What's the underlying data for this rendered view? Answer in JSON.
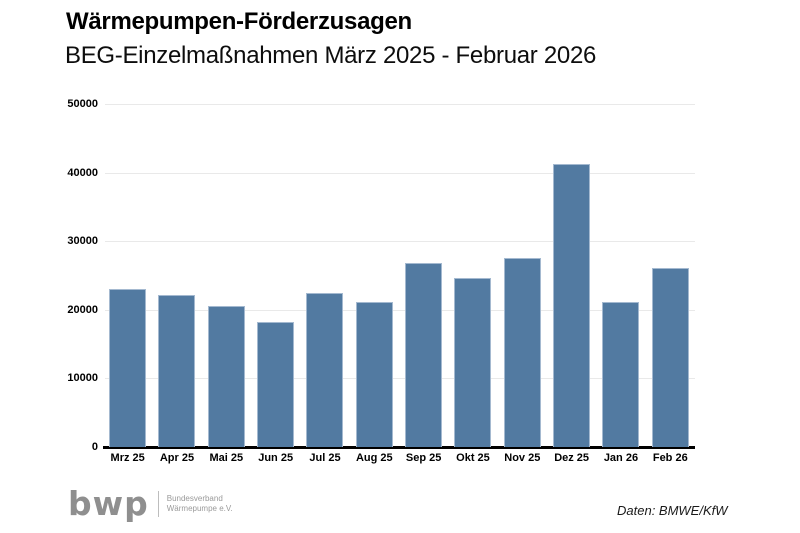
{
  "header": {
    "title": "Wärmepumpen-Förderzusagen",
    "subtitle": "BEG-Einzelmaßnahmen März 2025 - Februar 2026"
  },
  "chart_data": {
    "type": "bar",
    "title": "Wärmepumpen-Förderzusagen",
    "subtitle": "BEG-Einzelmaßnahmen März 2025 - Februar 2026",
    "categories": [
      "Mrz 25",
      "Apr 25",
      "Mai 25",
      "Jun 25",
      "Jul 25",
      "Aug 25",
      "Sep 25",
      "Okt 25",
      "Nov 25",
      "Dez 25",
      "Jan 26",
      "Feb 26"
    ],
    "values": [
      23100,
      22100,
      20600,
      18300,
      22500,
      21200,
      26900,
      24700,
      27500,
      41300,
      21200,
      26100
    ],
    "xlabel": "",
    "ylabel": "",
    "ylim": [
      0,
      50000
    ],
    "yticks": [
      0,
      10000,
      20000,
      30000,
      40000,
      50000
    ],
    "grid": "horizontal, light gray, no legend",
    "legend": "none",
    "bar_color": "#527aa1",
    "bar_border_color": "#a4b9d0",
    "gridline_color": "#e9e9e9",
    "axis_color": "#000000"
  },
  "footer": {
    "logo_text": "bwp",
    "logo_caption_line1": "Bundesverband",
    "logo_caption_line2": "Wärmepumpe e.V.",
    "source": "Daten: BMWE/KfW"
  }
}
